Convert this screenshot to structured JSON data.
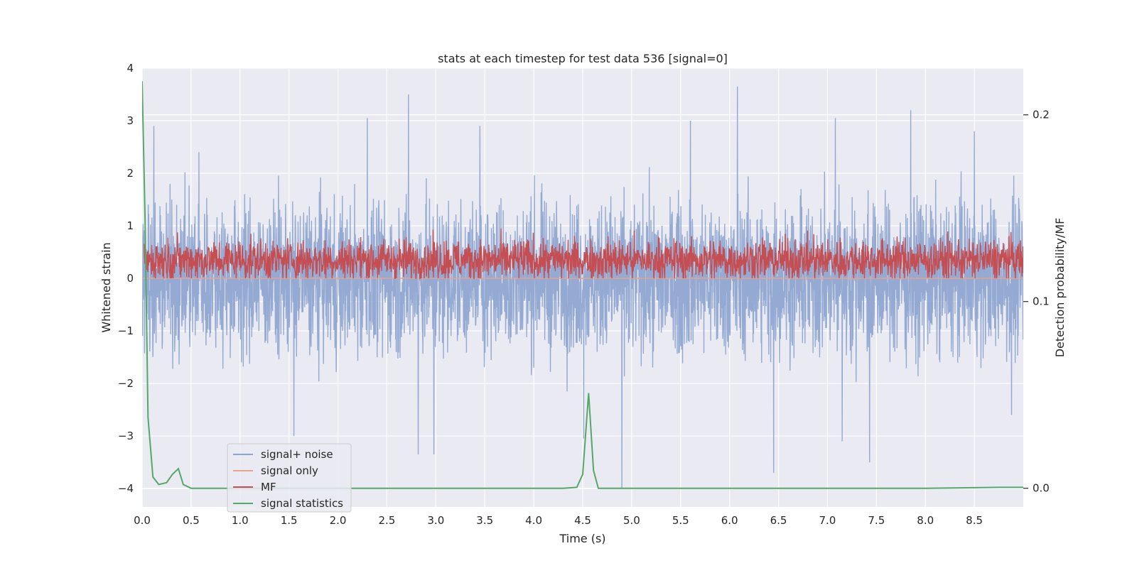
{
  "chart_data": {
    "type": "line",
    "title": "stats at each timestep for test data 536 [signal=0]",
    "xlabel": "Time (s)",
    "ylabel": "Whitened strain",
    "y2label": "Detection probability/MF",
    "xlim": [
      0,
      9.0
    ],
    "ylim": [
      -4.35,
      4.0
    ],
    "y2lim": [
      -0.01,
      0.225
    ],
    "x_ticks": [
      "0.0",
      "0.5",
      "1.0",
      "1.5",
      "2.0",
      "2.5",
      "3.0",
      "3.5",
      "4.0",
      "4.5",
      "5.0",
      "5.5",
      "6.0",
      "6.5",
      "7.0",
      "7.5",
      "8.0",
      "8.5"
    ],
    "y_ticks": [
      "4",
      "3",
      "2",
      "1",
      "0",
      "−1",
      "−2",
      "−3",
      "−4"
    ],
    "y2_ticks": [
      "0.2",
      "0.1",
      "0.0"
    ],
    "grid": true,
    "legend_position": "lower-left",
    "series": [
      {
        "name": "signal+ noise",
        "axis": "left",
        "color": "#8fa6d1",
        "description_range": [
          -4.0,
          3.65
        ],
        "peaks": [
          {
            "x": 0.12,
            "y": 2.9
          },
          {
            "x": 0.58,
            "y": 2.4
          },
          {
            "x": 1.55,
            "y": -3.0
          },
          {
            "x": 2.3,
            "y": 3.05
          },
          {
            "x": 2.72,
            "y": 3.5
          },
          {
            "x": 2.82,
            "y": 3.4
          },
          {
            "x": 2.82,
            "y": -3.35
          },
          {
            "x": 2.98,
            "y": -3.35
          },
          {
            "x": 3.45,
            "y": 2.9
          },
          {
            "x": 4.51,
            "y": -3.05
          },
          {
            "x": 4.9,
            "y": -4.0
          },
          {
            "x": 5.6,
            "y": 3.0
          },
          {
            "x": 6.08,
            "y": 3.65
          },
          {
            "x": 6.45,
            "y": -3.7
          },
          {
            "x": 7.08,
            "y": 3.05
          },
          {
            "x": 7.15,
            "y": -3.1
          },
          {
            "x": 7.43,
            "y": -3.5
          },
          {
            "x": 7.85,
            "y": 3.2
          },
          {
            "x": 8.5,
            "y": 2.8
          },
          {
            "x": 8.88,
            "y": -2.6
          }
        ]
      },
      {
        "name": "signal only",
        "axis": "left",
        "color": "#eaa28a",
        "value": 0.0
      },
      {
        "name": "MF",
        "axis": "left",
        "color": "#c44e52",
        "description_range": [
          0.0,
          1.0
        ]
      },
      {
        "name": "signal statistics",
        "axis": "right",
        "color": "#55a868",
        "x": [
          0.0,
          0.03,
          0.06,
          0.11,
          0.17,
          0.25,
          0.31,
          0.37,
          0.42,
          0.5,
          0.6,
          1.0,
          2.0,
          3.0,
          4.0,
          4.3,
          4.44,
          4.5,
          4.56,
          4.61,
          4.66,
          5.0,
          5.5,
          6.0,
          7.0,
          8.0,
          8.5,
          8.75,
          9.0
        ],
        "values": [
          0.218,
          0.145,
          0.038,
          0.006,
          0.002,
          0.003,
          0.0075,
          0.0105,
          0.002,
          0.0,
          0.0,
          0.0,
          0.0,
          0.0,
          0.0,
          0.0,
          0.0005,
          0.0075,
          0.051,
          0.0095,
          0.0,
          0.0,
          0.0,
          0.0,
          0.0,
          0.0,
          0.0003,
          0.0005,
          0.0005
        ]
      }
    ]
  }
}
